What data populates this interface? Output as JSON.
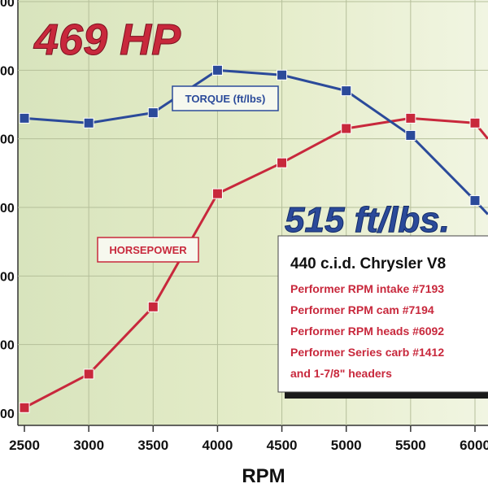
{
  "chart_data": {
    "type": "line",
    "xlabel": "RPM",
    "x_ticks": [
      "2500",
      "3000",
      "3500",
      "4000",
      "4500",
      "5000",
      "5500",
      "6000"
    ],
    "y_ticks": [
      "00",
      "00",
      "00",
      "00",
      "00",
      "00",
      "00"
    ],
    "xlim": [
      2500,
      6100
    ],
    "ylim": [
      0,
      6
    ],
    "grid": true,
    "title_hp": "469 HP",
    "title_torque": "515 ft/lbs.",
    "series": [
      {
        "name": "TORQUE (ft/lbs)",
        "color": "#2b4a9a",
        "x": [
          2500,
          3000,
          3500,
          4000,
          4500,
          5000,
          5500,
          6000,
          6100
        ],
        "y": [
          4.3,
          4.23,
          4.38,
          5.0,
          4.93,
          4.7,
          4.05,
          3.1,
          2.9
        ]
      },
      {
        "name": "HORSEPOWER",
        "color": "#c8283c",
        "x": [
          2500,
          3000,
          3500,
          4000,
          4500,
          5000,
          5500,
          6000,
          6100
        ],
        "y": [
          0.08,
          0.57,
          1.55,
          3.2,
          3.65,
          4.15,
          4.3,
          4.23,
          4.0
        ]
      }
    ],
    "annotation": {
      "heading": "440 c.i.d. Chrysler V8",
      "lines": [
        "Performer RPM intake #7193",
        "Performer RPM cam #7194",
        "Performer RPM heads #6092",
        "Performer Series carb #1412",
        "and 1-7/8\" headers"
      ]
    }
  }
}
